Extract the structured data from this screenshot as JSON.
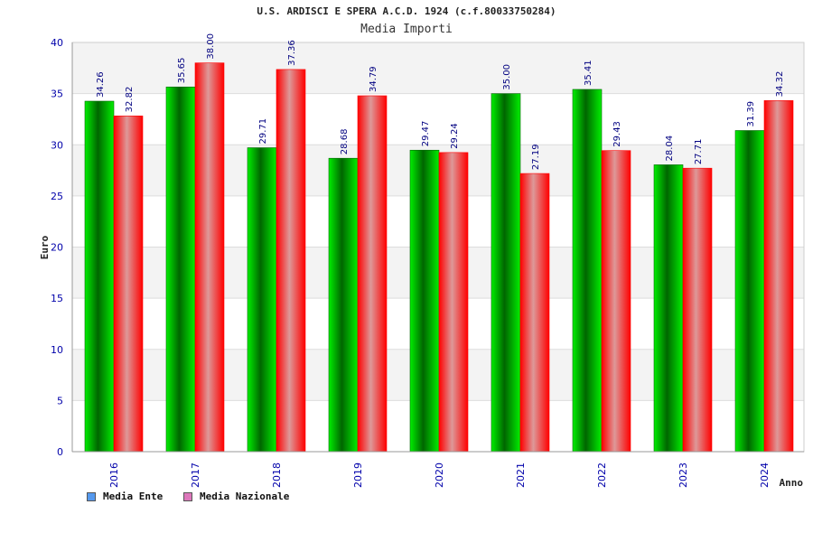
{
  "chart_data": {
    "type": "bar",
    "title": "U.S. ARDISCI E SPERA A.C.D. 1924 (c.f.80033750284)",
    "subtitle": "Media Importi",
    "xlabel": "Anno",
    "ylabel": "Euro",
    "ylim": [
      0,
      40
    ],
    "yticks": [
      0,
      5,
      10,
      15,
      20,
      25,
      30,
      35,
      40
    ],
    "categories": [
      "2016",
      "2017",
      "2018",
      "2019",
      "2020",
      "2021",
      "2022",
      "2023",
      "2024"
    ],
    "series": [
      {
        "name": "Media Ente",
        "values": [
          34.26,
          35.65,
          29.71,
          28.68,
          29.47,
          35.0,
          35.41,
          28.04,
          31.39
        ],
        "labels": [
          "34.26",
          "35.65",
          "29.71",
          "28.68",
          "29.47",
          "35.00",
          "35.41",
          "28.04",
          "31.39"
        ]
      },
      {
        "name": "Media Nazionale",
        "values": [
          32.82,
          38.0,
          37.36,
          34.79,
          29.24,
          27.19,
          29.43,
          27.71,
          34.32
        ],
        "labels": [
          "32.82",
          "38.00",
          "37.36",
          "34.79",
          "29.24",
          "27.19",
          "29.43",
          "27.71",
          "34.32"
        ]
      }
    ],
    "legend_position": "bottom-left"
  },
  "colors": {
    "ente_dark": "#006600",
    "ente_light": "#00ee00",
    "naz_dark": "#ff0000",
    "naz_light": "#dd9999",
    "legend_ente": "#5599ee",
    "legend_naz": "#dd77bb",
    "axis_text": "#0000aa",
    "band": "#f3f3f3"
  }
}
